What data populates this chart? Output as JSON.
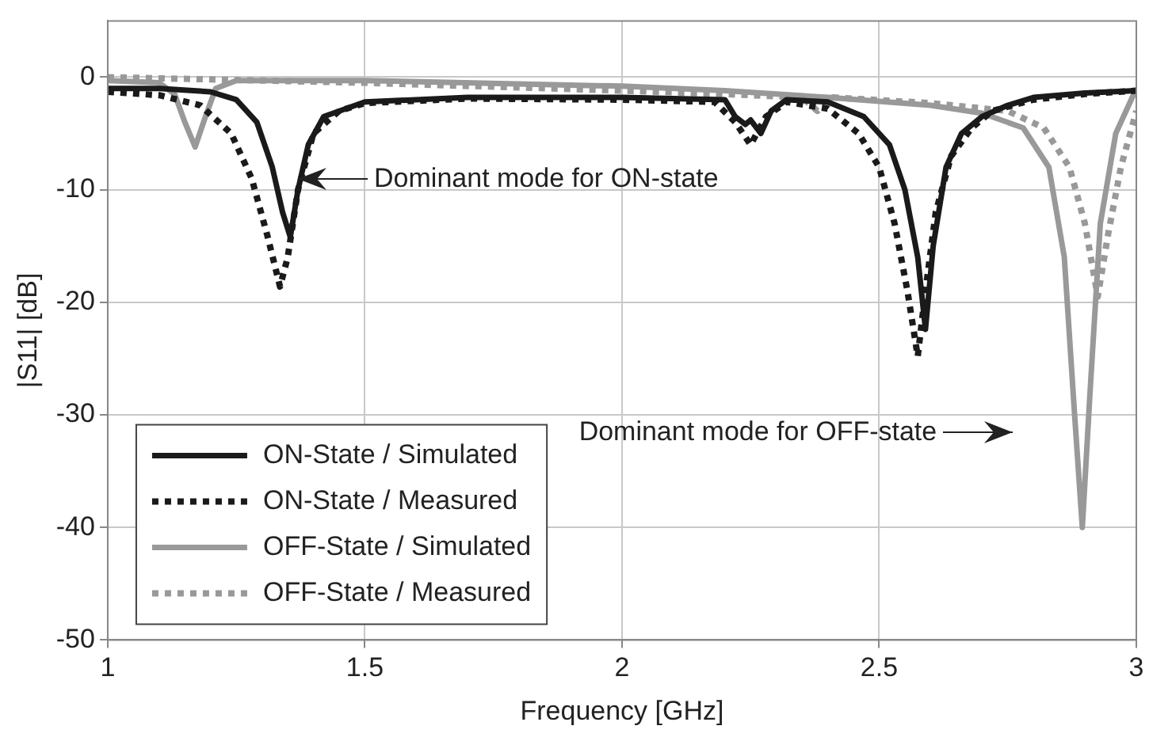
{
  "chart_data": {
    "type": "line",
    "xlabel": "Frequency [GHz]",
    "ylabel": "|S11| [dB]",
    "xlim": [
      1,
      3
    ],
    "xticks": [
      1,
      1.5,
      2,
      2.5,
      3
    ],
    "ylim": [
      -50,
      5
    ],
    "yticks": [
      -50,
      -40,
      -30,
      -20,
      -10,
      0
    ],
    "grid": true,
    "legend": "bottom left",
    "marker": "none",
    "annotations": [
      "Dominant mode for ON-state",
      "Dominant mode for OFF-state"
    ],
    "series": [
      {
        "name": "ON-State / Simulated",
        "color": "#1a1a1a",
        "line_style": "solid",
        "x": [
          1.0,
          1.1,
          1.2,
          1.25,
          1.29,
          1.32,
          1.34,
          1.355,
          1.37,
          1.39,
          1.42,
          1.5,
          1.7,
          2.0,
          2.2,
          2.22,
          2.24,
          2.25,
          2.27,
          2.29,
          2.32,
          2.4,
          2.47,
          2.52,
          2.55,
          2.575,
          2.59,
          2.605,
          2.63,
          2.66,
          2.7,
          2.75,
          2.8,
          2.9,
          3.0
        ],
        "values": [
          -1.0,
          -1.0,
          -1.3,
          -2.0,
          -4,
          -8,
          -12,
          -14.2,
          -10,
          -6,
          -3.5,
          -2.2,
          -1.8,
          -1.8,
          -2.0,
          -3.5,
          -4.2,
          -3.8,
          -5,
          -3,
          -2.0,
          -2.2,
          -3.5,
          -6,
          -10,
          -16,
          -22.4,
          -15,
          -8,
          -5,
          -3.5,
          -2.5,
          -1.8,
          -1.4,
          -1.2
        ]
      },
      {
        "name": "ON-State / Measured",
        "color": "#1a1a1a",
        "line_style": "dotted",
        "x": [
          1.0,
          1.1,
          1.18,
          1.24,
          1.28,
          1.31,
          1.335,
          1.35,
          1.37,
          1.4,
          1.45,
          1.5,
          1.7,
          2.0,
          2.18,
          2.22,
          2.25,
          2.28,
          2.32,
          2.4,
          2.46,
          2.5,
          2.53,
          2.555,
          2.575,
          2.59,
          2.61,
          2.64,
          2.68,
          2.72,
          2.8,
          2.9,
          3.0
        ],
        "values": [
          -1.3,
          -1.6,
          -2.5,
          -5,
          -9,
          -14,
          -18.6,
          -16,
          -10,
          -5,
          -3,
          -2.3,
          -1.9,
          -2.0,
          -2.2,
          -4,
          -6,
          -3.5,
          -2.2,
          -2.8,
          -5,
          -8,
          -13,
          -19,
          -24.8,
          -19,
          -12,
          -7,
          -4.5,
          -3,
          -2,
          -1.5,
          -1.2
        ]
      },
      {
        "name": "OFF-State / Simulated",
        "color": "#999999",
        "line_style": "solid",
        "x": [
          1.0,
          1.1,
          1.13,
          1.15,
          1.17,
          1.19,
          1.21,
          1.25,
          1.5,
          2.0,
          2.2,
          2.4,
          2.6,
          2.7,
          2.78,
          2.83,
          2.86,
          2.88,
          2.895,
          2.91,
          2.93,
          2.96,
          3.0
        ],
        "values": [
          -0.3,
          -0.5,
          -1.5,
          -4,
          -6.2,
          -3.5,
          -1,
          -0.3,
          -0.3,
          -0.8,
          -1.2,
          -1.8,
          -2.5,
          -3.2,
          -4.5,
          -8,
          -16,
          -30,
          -40,
          -28,
          -13,
          -5,
          -1
        ]
      },
      {
        "name": "OFF-State / Measured",
        "color": "#999999",
        "line_style": "dotted",
        "x": [
          1.0,
          1.2,
          1.5,
          2.0,
          2.2,
          2.35,
          2.38,
          2.41,
          2.6,
          2.75,
          2.82,
          2.87,
          2.9,
          2.925,
          2.945,
          2.97,
          3.0
        ],
        "values": [
          0,
          -0.2,
          -0.5,
          -1.2,
          -1.5,
          -1.8,
          -3,
          -1.8,
          -2.3,
          -3,
          -4.5,
          -8,
          -13,
          -19.5,
          -14,
          -8,
          -3
        ]
      }
    ]
  }
}
